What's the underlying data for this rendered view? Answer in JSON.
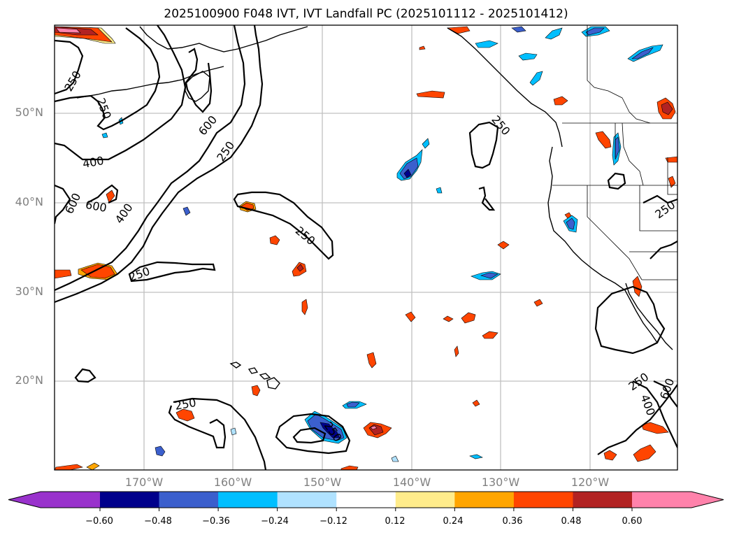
{
  "title": "2025100900 F048 IVT, IVT Landfall PC (2025101112 - 2025101412)",
  "map": {
    "lat_ticks": [
      "50°N",
      "40°N",
      "30°N",
      "20°N"
    ],
    "lon_ticks": [
      "170°W",
      "160°W",
      "150°W",
      "140°W",
      "130°W",
      "120°W"
    ],
    "extent": {
      "lon_min": -180,
      "lon_max": -110,
      "lat_min": 10,
      "lat_max": 60
    },
    "ivt_contour_levels": [
      250,
      400,
      600
    ],
    "contour_labels": [
      "250",
      "250",
      "400",
      "600",
      "600",
      "250",
      "600",
      "400",
      "250",
      "250",
      "250",
      "250",
      "250",
      "250",
      "600",
      "400",
      "250"
    ],
    "grid_color": "#c0c0c0",
    "tick_label_color": "#808080"
  },
  "colorbar": {
    "ticks": [
      "−0.60",
      "−0.48",
      "−0.36",
      "−0.24",
      "−0.12",
      "0.12",
      "0.24",
      "0.36",
      "0.48",
      "0.60"
    ],
    "colors": [
      "#9932cc",
      "#00008b",
      "#3b5fcd",
      "#00bfff",
      "#b0e2ff",
      "#ffffff",
      "#ffec8b",
      "#ffa500",
      "#ff4500",
      "#b22222",
      "#ff82ab"
    ],
    "extend": "both"
  }
}
